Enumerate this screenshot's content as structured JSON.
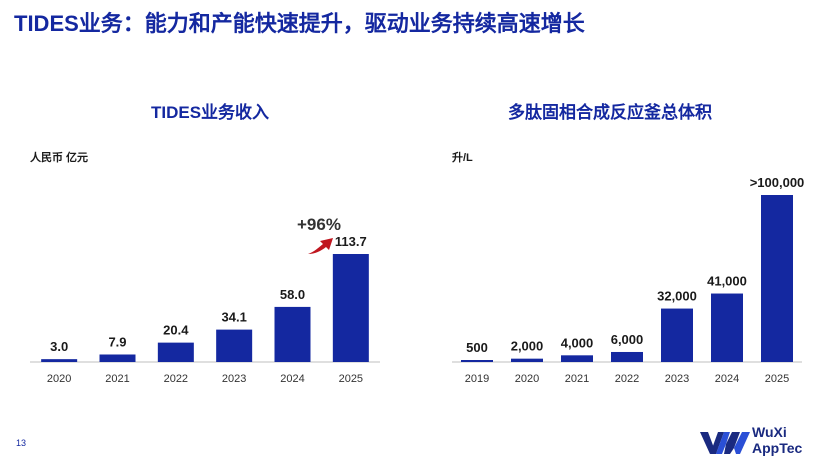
{
  "page": {
    "title": "TIDES业务：能力和产能快速提升，驱动业务持续高速增长",
    "page_number": "13",
    "logo": {
      "line1": "WuXi",
      "line2": "AppTec",
      "icon": "wuxi-apptec-logo-icon"
    }
  },
  "colors": {
    "bar": "#1428a0",
    "title": "#1428a0",
    "arrow": "#c0161f"
  },
  "chart_data": [
    {
      "type": "bar",
      "title": "TIDES业务收入",
      "unit": "人民币 亿元",
      "categories": [
        "2020",
        "2021",
        "2022",
        "2023",
        "2024",
        "2025"
      ],
      "values": [
        3.0,
        7.9,
        20.4,
        34.1,
        58.0,
        113.7
      ],
      "labels": [
        "3.0",
        "7.9",
        "20.4",
        "34.1",
        "58.0",
        "113.7"
      ],
      "ylim": [
        0,
        113.7
      ],
      "grid": false,
      "annotation": {
        "text": "+96%",
        "icon": "growth-arrow-icon"
      }
    },
    {
      "type": "bar",
      "title": "多肽固相合成反应釜总体积",
      "unit": "升/L",
      "categories": [
        "2019",
        "2020",
        "2021",
        "2022",
        "2023",
        "2024",
        "2025"
      ],
      "values": [
        500,
        2000,
        4000,
        6000,
        32000,
        41000,
        100000
      ],
      "labels": [
        "500",
        "2,000",
        "4,000",
        "6,000",
        "32,000",
        "41,000",
        ">100,000"
      ],
      "ylim": [
        0,
        100000
      ],
      "grid": false
    }
  ]
}
